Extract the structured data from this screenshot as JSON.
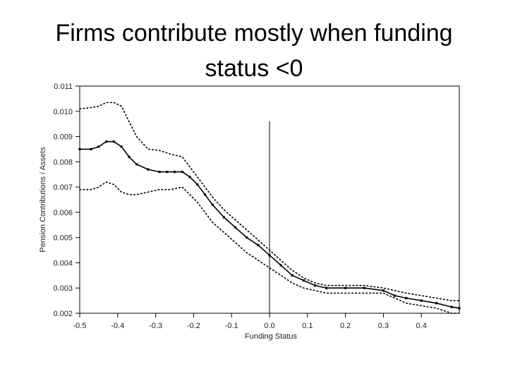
{
  "slide": {
    "title_line1": "Firms contribute mostly when funding",
    "title_line2": "status <0"
  },
  "chart_data": {
    "type": "line",
    "xlabel": "Funding Status",
    "ylabel": "Pension Contributions / Assets",
    "xlim": [
      -0.5,
      0.5
    ],
    "ylim": [
      0.002,
      0.011
    ],
    "xticks": [
      -0.5,
      -0.4,
      -0.3,
      -0.2,
      -0.1,
      0.0,
      0.1,
      0.2,
      0.3,
      0.4
    ],
    "xtick_labels": [
      "-0.5",
      "-0.4",
      "-0.3",
      "-0.2",
      "-0.1",
      "0.0",
      "0.1",
      "0.2",
      "0.3",
      "0.4"
    ],
    "yticks": [
      0.002,
      0.003,
      0.004,
      0.005,
      0.006,
      0.007,
      0.008,
      0.009,
      0.01,
      0.011
    ],
    "ytick_labels": [
      "0.002",
      "0.003",
      "0.004",
      "0.005",
      "0.006",
      "0.007",
      "0.008",
      "0.009",
      "0.010",
      "0.011"
    ],
    "vline_x": 0.0,
    "vline_y_top": 0.0096,
    "grid": false,
    "series": [
      {
        "style": "upper-bound-dotted",
        "x": [
          -0.5,
          -0.47,
          -0.45,
          -0.43,
          -0.41,
          -0.39,
          -0.37,
          -0.35,
          -0.32,
          -0.29,
          -0.26,
          -0.23,
          -0.21,
          -0.19,
          -0.17,
          -0.15,
          -0.12,
          -0.09,
          -0.06,
          -0.03,
          0.0,
          0.03,
          0.06,
          0.09,
          0.12,
          0.15,
          0.2,
          0.25,
          0.3,
          0.33,
          0.36,
          0.4,
          0.44,
          0.48,
          0.5
        ],
        "y": [
          0.0101,
          0.01015,
          0.0102,
          0.01035,
          0.01035,
          0.0102,
          0.0096,
          0.009,
          0.0085,
          0.00845,
          0.0083,
          0.0082,
          0.0078,
          0.0074,
          0.007,
          0.0066,
          0.0061,
          0.0057,
          0.0053,
          0.0049,
          0.0045,
          0.0041,
          0.0037,
          0.0034,
          0.0032,
          0.0031,
          0.0031,
          0.0031,
          0.003,
          0.0029,
          0.0028,
          0.0027,
          0.0026,
          0.0025,
          0.0025
        ]
      },
      {
        "style": "estimate-solid-markers",
        "x": [
          -0.5,
          -0.47,
          -0.45,
          -0.43,
          -0.41,
          -0.39,
          -0.37,
          -0.35,
          -0.32,
          -0.29,
          -0.27,
          -0.25,
          -0.23,
          -0.21,
          -0.19,
          -0.17,
          -0.15,
          -0.12,
          -0.09,
          -0.06,
          -0.03,
          0.0,
          0.03,
          0.06,
          0.09,
          0.12,
          0.15,
          0.2,
          0.25,
          0.3,
          0.33,
          0.36,
          0.4,
          0.44,
          0.48,
          0.5
        ],
        "y": [
          0.0085,
          0.0085,
          0.0086,
          0.0088,
          0.0088,
          0.0086,
          0.0082,
          0.0079,
          0.0077,
          0.0076,
          0.0076,
          0.0076,
          0.0076,
          0.0074,
          0.0071,
          0.0067,
          0.0063,
          0.0058,
          0.0054,
          0.005,
          0.0047,
          0.0043,
          0.0039,
          0.0035,
          0.0033,
          0.0031,
          0.003,
          0.003,
          0.003,
          0.0029,
          0.0027,
          0.0026,
          0.0025,
          0.0024,
          0.00225,
          0.0022
        ]
      },
      {
        "style": "lower-bound-dotted",
        "x": [
          -0.5,
          -0.47,
          -0.45,
          -0.43,
          -0.41,
          -0.39,
          -0.37,
          -0.35,
          -0.32,
          -0.29,
          -0.26,
          -0.23,
          -0.21,
          -0.19,
          -0.17,
          -0.15,
          -0.12,
          -0.09,
          -0.06,
          -0.03,
          0.0,
          0.03,
          0.06,
          0.09,
          0.12,
          0.15,
          0.2,
          0.25,
          0.3,
          0.33,
          0.36,
          0.4,
          0.44,
          0.48,
          0.5
        ],
        "y": [
          0.0069,
          0.0069,
          0.007,
          0.0072,
          0.0071,
          0.0068,
          0.0067,
          0.0067,
          0.0068,
          0.0069,
          0.0069,
          0.007,
          0.0067,
          0.0064,
          0.006,
          0.0056,
          0.0052,
          0.0048,
          0.0044,
          0.0041,
          0.0038,
          0.0035,
          0.0032,
          0.003,
          0.0029,
          0.0028,
          0.0028,
          0.0028,
          0.0028,
          0.0026,
          0.0024,
          0.0023,
          0.0022,
          0.002,
          0.002
        ]
      }
    ]
  }
}
